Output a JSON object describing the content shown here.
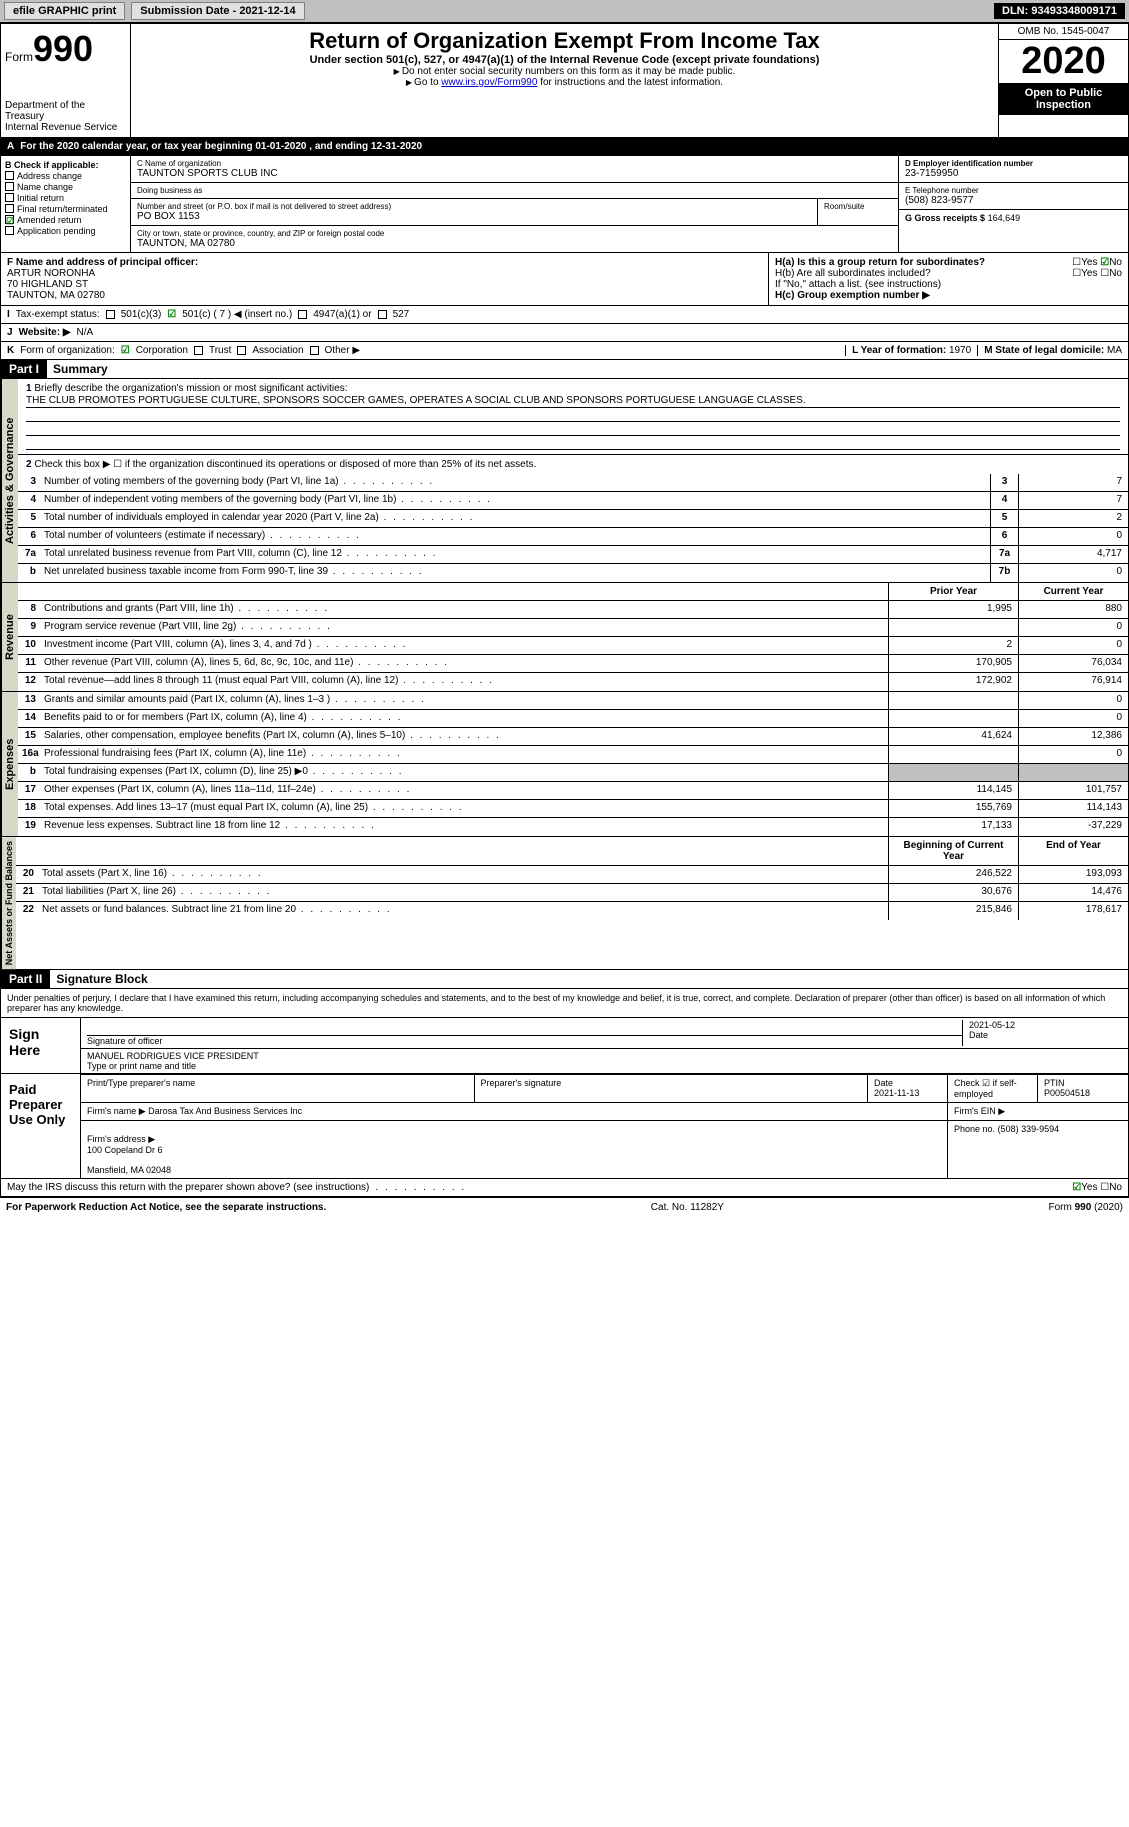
{
  "topbar": {
    "efile": "efile GRAPHIC print",
    "submission": "Submission Date - 2021-12-14",
    "dln": "DLN: 93493348009171"
  },
  "header": {
    "form_prefix": "Form",
    "form_number": "990",
    "title": "Return of Organization Exempt From Income Tax",
    "subtitle": "Under section 501(c), 527, or 4947(a)(1) of the Internal Revenue Code (except private foundations)",
    "note1": "Do not enter social security numbers on this form as it may be made public.",
    "note2_prefix": "Go to ",
    "note2_link": "www.irs.gov/Form990",
    "note2_suffix": " for instructions and the latest information.",
    "dept": "Department of the Treasury\nInternal Revenue Service",
    "omb": "OMB No. 1545-0047",
    "year": "2020",
    "inspection": "Open to Public Inspection"
  },
  "section_a": "For the 2020 calendar year, or tax year beginning 01-01-2020    , and ending 12-31-2020",
  "col_b": {
    "header": "B Check if applicable:",
    "items": [
      "Address change",
      "Name change",
      "Initial return",
      "Final return/terminated",
      "Amended return",
      "Application pending"
    ],
    "checked_idx": 4
  },
  "col_c": {
    "name_label": "C Name of organization",
    "name": "TAUNTON SPORTS CLUB INC",
    "dba_label": "Doing business as",
    "dba": "",
    "street_label": "Number and street (or P.O. box if mail is not delivered to street address)",
    "room_label": "Room/suite",
    "street": "PO BOX 1153",
    "city_label": "City or town, state or province, country, and ZIP or foreign postal code",
    "city": "TAUNTON, MA  02780"
  },
  "col_d": {
    "ein_label": "D Employer identification number",
    "ein": "23-7159950",
    "tel_label": "E Telephone number",
    "tel": "(508) 823-9577",
    "gross_label": "G Gross receipts $",
    "gross": "164,649"
  },
  "col_f": {
    "label": "F  Name and address of principal officer:",
    "name": "ARTUR NORONHA",
    "street": "70 HIGHLAND ST",
    "city": "TAUNTON, MA  02780"
  },
  "col_h": {
    "ha_label": "H(a)  Is this a group return for subordinates?",
    "ha_no_checked": true,
    "hb_label": "H(b)  Are all subordinates included?",
    "hb_note": "If \"No,\" attach a list. (see instructions)",
    "hc_label": "H(c)  Group exemption number ▶"
  },
  "row_i": {
    "label": "I",
    "text": "Tax-exempt status:",
    "opts": [
      "501(c)(3)",
      "501(c) ( 7 ) ◀ (insert no.)",
      "4947(a)(1) or",
      "527"
    ],
    "checked_idx": 1
  },
  "row_j": {
    "label": "J",
    "text": "Website: ▶",
    "value": "N/A"
  },
  "row_k": {
    "label": "K",
    "text": "Form of organization:",
    "opts": [
      "Corporation",
      "Trust",
      "Association",
      "Other ▶"
    ],
    "checked_idx": 0,
    "l_label": "L Year of formation:",
    "l_value": "1970",
    "m_label": "M State of legal domicile:",
    "m_value": "MA"
  },
  "part1": {
    "num": "Part I",
    "title": "Summary",
    "q1_num": "1",
    "q1_text": "Briefly describe the organization's mission or most significant activities:",
    "q1_value": "THE CLUB PROMOTES PORTUGUESE CULTURE, SPONSORS SOCCER GAMES, OPERATES A SOCIAL CLUB AND SPONSORS PORTUGUESE LANGUAGE CLASSES.",
    "q2_num": "2",
    "q2_text": "Check this box ▶ ☐  if the organization discontinued its operations or disposed of more than 25% of its net assets."
  },
  "governance_lines": [
    {
      "n": "3",
      "t": "Number of voting members of the governing body (Part VI, line 1a)",
      "b": "3",
      "v": "7"
    },
    {
      "n": "4",
      "t": "Number of independent voting members of the governing body (Part VI, line 1b)",
      "b": "4",
      "v": "7"
    },
    {
      "n": "5",
      "t": "Total number of individuals employed in calendar year 2020 (Part V, line 2a)",
      "b": "5",
      "v": "2"
    },
    {
      "n": "6",
      "t": "Total number of volunteers (estimate if necessary)",
      "b": "6",
      "v": "0"
    },
    {
      "n": "7a",
      "t": "Total unrelated business revenue from Part VIII, column (C), line 12",
      "b": "7a",
      "v": "4,717"
    },
    {
      "n": "b",
      "t": "Net unrelated business taxable income from Form 990-T, line 39",
      "b": "7b",
      "v": "0"
    }
  ],
  "governance_label": "Activities & Governance",
  "revenue_label": "Revenue",
  "expenses_label": "Expenses",
  "netassets_label": "Net Assets or Fund Balances",
  "col_headers": {
    "prior": "Prior Year",
    "current": "Current Year",
    "boy": "Beginning of Current Year",
    "eoy": "End of Year"
  },
  "revenue_lines": [
    {
      "n": "8",
      "t": "Contributions and grants (Part VIII, line 1h)",
      "p": "1,995",
      "c": "880"
    },
    {
      "n": "9",
      "t": "Program service revenue (Part VIII, line 2g)",
      "p": "",
      "c": "0"
    },
    {
      "n": "10",
      "t": "Investment income (Part VIII, column (A), lines 3, 4, and 7d )",
      "p": "2",
      "c": "0"
    },
    {
      "n": "11",
      "t": "Other revenue (Part VIII, column (A), lines 5, 6d, 8c, 9c, 10c, and 11e)",
      "p": "170,905",
      "c": "76,034"
    },
    {
      "n": "12",
      "t": "Total revenue—add lines 8 through 11 (must equal Part VIII, column (A), line 12)",
      "p": "172,902",
      "c": "76,914"
    }
  ],
  "expense_lines": [
    {
      "n": "13",
      "t": "Grants and similar amounts paid (Part IX, column (A), lines 1–3 )",
      "p": "",
      "c": "0"
    },
    {
      "n": "14",
      "t": "Benefits paid to or for members (Part IX, column (A), line 4)",
      "p": "",
      "c": "0"
    },
    {
      "n": "15",
      "t": "Salaries, other compensation, employee benefits (Part IX, column (A), lines 5–10)",
      "p": "41,624",
      "c": "12,386"
    },
    {
      "n": "16a",
      "t": "Professional fundraising fees (Part IX, column (A), line 11e)",
      "p": "",
      "c": "0"
    },
    {
      "n": "b",
      "t": "Total fundraising expenses (Part IX, column (D), line 25) ▶0",
      "p": "",
      "c": "",
      "shade": true
    },
    {
      "n": "17",
      "t": "Other expenses (Part IX, column (A), lines 11a–11d, 11f–24e)",
      "p": "114,145",
      "c": "101,757"
    },
    {
      "n": "18",
      "t": "Total expenses. Add lines 13–17 (must equal Part IX, column (A), line 25)",
      "p": "155,769",
      "c": "114,143"
    },
    {
      "n": "19",
      "t": "Revenue less expenses. Subtract line 18 from line 12",
      "p": "17,133",
      "c": "-37,229"
    }
  ],
  "netasset_lines": [
    {
      "n": "20",
      "t": "Total assets (Part X, line 16)",
      "p": "246,522",
      "c": "193,093"
    },
    {
      "n": "21",
      "t": "Total liabilities (Part X, line 26)",
      "p": "30,676",
      "c": "14,476"
    },
    {
      "n": "22",
      "t": "Net assets or fund balances. Subtract line 21 from line 20",
      "p": "215,846",
      "c": "178,617"
    }
  ],
  "part2": {
    "num": "Part II",
    "title": "Signature Block",
    "penalty": "Under penalties of perjury, I declare that I have examined this return, including accompanying schedules and statements, and to the best of my knowledge and belief, it is true, correct, and complete. Declaration of preparer (other than officer) is based on all information of which preparer has any knowledge."
  },
  "sign": {
    "label": "Sign Here",
    "sig_label": "Signature of officer",
    "date_label": "Date",
    "date": "2021-05-12",
    "name": "MANUEL RODRIGUES VICE PRESIDENT",
    "name_label": "Type or print name and title"
  },
  "preparer": {
    "label": "Paid Preparer Use Only",
    "print_label": "Print/Type preparer's name",
    "sig_label": "Preparer's signature",
    "date_label": "Date",
    "date": "2021-11-13",
    "check_label": "Check ☑ if self-employed",
    "ptin_label": "PTIN",
    "ptin": "P00504518",
    "firm_name_label": "Firm's name    ▶",
    "firm_name": "Darosa Tax And Business Services Inc",
    "firm_ein_label": "Firm's EIN ▶",
    "firm_addr_label": "Firm's address ▶",
    "firm_addr": "100 Copeland Dr 6\n\nMansfield, MA  02048",
    "phone_label": "Phone no.",
    "phone": "(508) 339-9594"
  },
  "irs_discuss": {
    "text": "May the IRS discuss this return with the preparer shown above? (see instructions)",
    "yes_checked": true
  },
  "footer": {
    "left": "For Paperwork Reduction Act Notice, see the separate instructions.",
    "mid": "Cat. No. 11282Y",
    "right": "Form 990 (2020)"
  }
}
